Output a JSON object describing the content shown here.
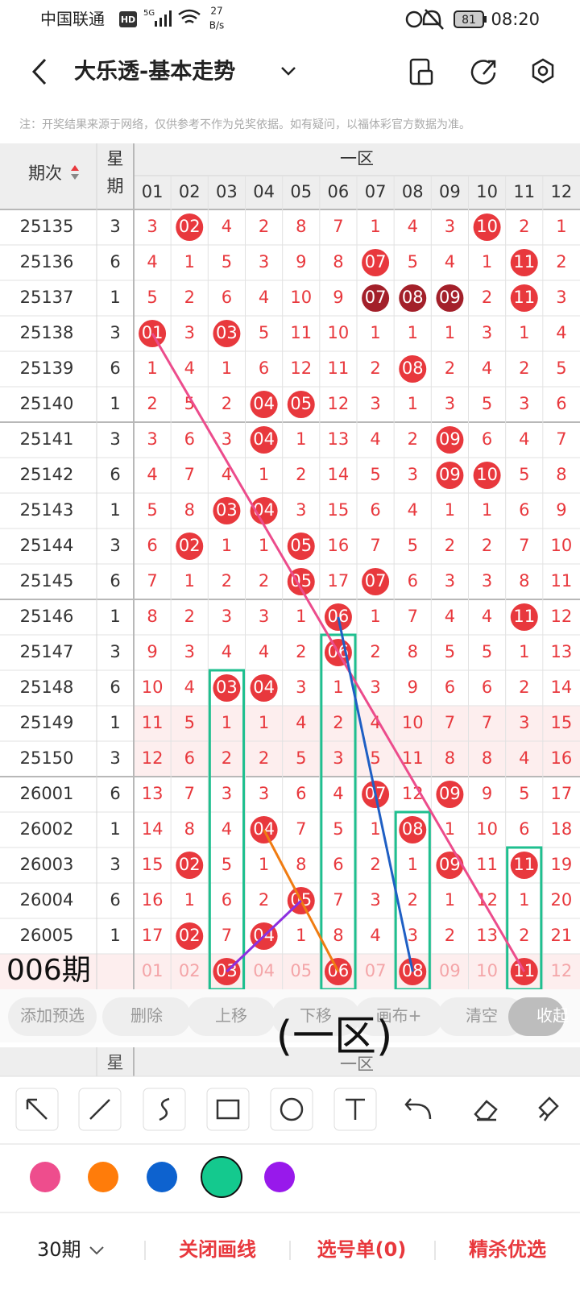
{
  "status_bar": {
    "carrier": "中国联通",
    "hd": "HD",
    "network": "5G",
    "speed": "27",
    "speed_unit": "B/s",
    "battery": "81",
    "time": "08:20"
  },
  "header": {
    "title": "大乐透-基本走势"
  },
  "note": "注：开奖结果来源于网络，仅供参考不作为兑奖依据。如有疑问，以福体彩官方数据为准。",
  "table": {
    "period_header": "期次",
    "week_header": [
      "星",
      "期"
    ],
    "zone_header": "一区",
    "columns": [
      "01",
      "02",
      "03",
      "04",
      "05",
      "06",
      "07",
      "08",
      "09",
      "10",
      "11",
      "12"
    ],
    "rows": [
      {
        "period": "25135",
        "week": "3",
        "cells": [
          "3",
          {
            "text": "02",
            "ball": "red"
          },
          "4",
          "2",
          "8",
          "7",
          "1",
          "4",
          "3",
          {
            "text": "10",
            "ball": "red"
          },
          "2",
          "1"
        ]
      },
      {
        "period": "25136",
        "week": "6",
        "cells": [
          "4",
          "1",
          "5",
          "3",
          "9",
          "8",
          {
            "text": "07",
            "ball": "red"
          },
          "5",
          "4",
          "1",
          {
            "text": "11",
            "ball": "red"
          },
          "2"
        ]
      },
      {
        "period": "25137",
        "week": "1",
        "cells": [
          "5",
          "2",
          "6",
          "4",
          "10",
          "9",
          {
            "text": "07",
            "ball": "dark"
          },
          {
            "text": "08",
            "ball": "dark"
          },
          {
            "text": "09",
            "ball": "dark"
          },
          "2",
          {
            "text": "11",
            "ball": "red"
          },
          "3"
        ]
      },
      {
        "period": "25138",
        "week": "3",
        "cells": [
          {
            "text": "01",
            "ball": "red"
          },
          "3",
          {
            "text": "03",
            "ball": "red"
          },
          "5",
          "11",
          "10",
          "1",
          "1",
          "1",
          "3",
          "1",
          "4"
        ]
      },
      {
        "period": "25139",
        "week": "6",
        "cells": [
          "1",
          "4",
          "1",
          "6",
          "12",
          "11",
          "2",
          {
            "text": "08",
            "ball": "red"
          },
          "2",
          "4",
          "2",
          "5"
        ]
      },
      {
        "period": "25140",
        "week": "1",
        "cells": [
          "2",
          "5",
          "2",
          {
            "text": "04",
            "ball": "red"
          },
          {
            "text": "05",
            "ball": "red"
          },
          "12",
          "3",
          "1",
          "3",
          "5",
          "3",
          "6"
        ]
      },
      {
        "period": "25141",
        "week": "3",
        "cells": [
          "3",
          "6",
          "3",
          {
            "text": "04",
            "ball": "red"
          },
          "1",
          "13",
          "4",
          "2",
          {
            "text": "09",
            "ball": "red"
          },
          "6",
          "4",
          "7"
        ]
      },
      {
        "period": "25142",
        "week": "6",
        "cells": [
          "4",
          "7",
          "4",
          "1",
          "2",
          "14",
          "5",
          "3",
          {
            "text": "09",
            "ball": "red"
          },
          {
            "text": "10",
            "ball": "red"
          },
          "5",
          "8"
        ]
      },
      {
        "period": "25143",
        "week": "1",
        "cells": [
          "5",
          "8",
          {
            "text": "03",
            "ball": "red"
          },
          {
            "text": "04",
            "ball": "red"
          },
          "3",
          "15",
          "6",
          "4",
          "1",
          "1",
          "6",
          "9"
        ]
      },
      {
        "period": "25144",
        "week": "3",
        "cells": [
          "6",
          {
            "text": "02",
            "ball": "red"
          },
          "1",
          "1",
          {
            "text": "05",
            "ball": "red"
          },
          "16",
          "7",
          "5",
          "2",
          "2",
          "7",
          "10"
        ]
      },
      {
        "period": "25145",
        "week": "6",
        "cells": [
          "7",
          "1",
          "2",
          "2",
          {
            "text": "05",
            "ball": "red"
          },
          "17",
          {
            "text": "07",
            "ball": "red"
          },
          "6",
          "3",
          "3",
          "8",
          "11"
        ]
      },
      {
        "period": "25146",
        "week": "1",
        "cells": [
          "8",
          "2",
          "3",
          "3",
          "1",
          {
            "text": "06",
            "ball": "red"
          },
          "1",
          "7",
          "4",
          "4",
          {
            "text": "11",
            "ball": "red"
          },
          "12"
        ]
      },
      {
        "period": "25147",
        "week": "3",
        "cells": [
          "9",
          "3",
          "4",
          "4",
          "2",
          {
            "text": "06",
            "ball": "red"
          },
          "2",
          "8",
          "5",
          "5",
          "1",
          "13"
        ]
      },
      {
        "period": "25148",
        "week": "6",
        "cells": [
          "10",
          "4",
          {
            "text": "03",
            "ball": "red"
          },
          {
            "text": "04",
            "ball": "red"
          },
          "3",
          "1",
          "3",
          "9",
          "6",
          "6",
          "2",
          "14"
        ]
      },
      {
        "period": "25149",
        "week": "1",
        "cells": [
          "11",
          "5",
          "1",
          "1",
          "4",
          "2",
          "4",
          "10",
          "7",
          "7",
          "3",
          "15"
        ]
      },
      {
        "period": "25150",
        "week": "3",
        "cells": [
          "12",
          "6",
          "2",
          "2",
          "5",
          "3",
          "5",
          "11",
          "8",
          "8",
          "4",
          "16"
        ]
      },
      {
        "period": "26001",
        "week": "6",
        "cells": [
          "13",
          "7",
          "3",
          "3",
          "6",
          "4",
          {
            "text": "07",
            "ball": "red"
          },
          "12",
          {
            "text": "09",
            "ball": "red"
          },
          "9",
          "5",
          "17"
        ]
      },
      {
        "period": "26002",
        "week": "1",
        "cells": [
          "14",
          "8",
          "4",
          {
            "text": "04",
            "ball": "red"
          },
          "7",
          "5",
          "1",
          {
            "text": "08",
            "ball": "red"
          },
          "1",
          "10",
          "6",
          "18"
        ]
      },
      {
        "period": "26003",
        "week": "3",
        "cells": [
          "15",
          {
            "text": "02",
            "ball": "red"
          },
          "5",
          "1",
          "8",
          "6",
          "2",
          "1",
          {
            "text": "09",
            "ball": "red"
          },
          "11",
          {
            "text": "11",
            "ball": "red"
          },
          "19"
        ]
      },
      {
        "period": "26004",
        "week": "6",
        "cells": [
          "16",
          "1",
          "6",
          "2",
          {
            "text": "05",
            "ball": "red"
          },
          "7",
          "3",
          "2",
          "1",
          "12",
          "1",
          "20"
        ]
      },
      {
        "period": "26005",
        "week": "1",
        "cells": [
          "17",
          {
            "text": "02",
            "ball": "red"
          },
          "7",
          {
            "text": "04",
            "ball": "red"
          },
          "1",
          "8",
          "4",
          "3",
          "2",
          "13",
          "2",
          "21"
        ]
      }
    ],
    "prediction": {
      "label": "006期",
      "cells": [
        "01",
        "02",
        {
          "text": "03",
          "ball": "red"
        },
        "04",
        "05",
        {
          "text": "06",
          "ball": "red"
        },
        "07",
        {
          "text": "08",
          "ball": "red"
        },
        "09",
        "10",
        {
          "text": "11",
          "ball": "red"
        },
        "12"
      ]
    }
  },
  "actions": [
    "添加预选",
    "删除",
    "上移",
    "下移",
    "画布+",
    "清空",
    "收起"
  ],
  "overlay_text": "(一区)",
  "sticky_header": {
    "week": "星",
    "zone": "一区"
  },
  "bottom_bar": {
    "periods": "30期",
    "close_drawing": "关闭画线",
    "selection": "选号单(0)",
    "picks": "精杀优选"
  }
}
